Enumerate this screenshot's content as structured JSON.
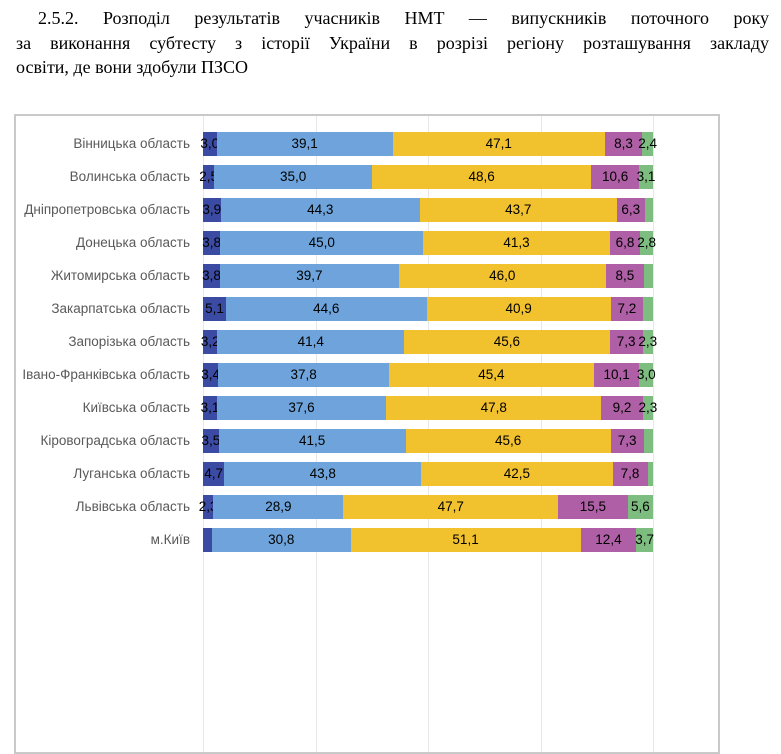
{
  "document": {
    "title_lines": [
      "2.5.2. Розподіл результатів учасників НМТ — випускників поточного року",
      "за виконання субтесту з історії України в розрізі регіону розташування закладу",
      "освіти, де вони здобули ПЗСО"
    ]
  },
  "chart_data": {
    "type": "bar",
    "orientation": "horizontal",
    "stacked": true,
    "units": "percent",
    "xlim": [
      0,
      100
    ],
    "grid": true,
    "gridlines_at": [
      0,
      25,
      50,
      75,
      100
    ],
    "value_format": "comma-decimal, labels inside segments; empty label = segment too small to be labeled in source",
    "segment_colors": [
      "#3b4aa2",
      "#6ea4db",
      "#f2c12e",
      "#af5fa5",
      "#7ebd80"
    ],
    "categories": [
      "Вінницька область",
      "Волинська область",
      "Дніпропетровська область",
      "Донецька область",
      "Житомирська область",
      "Закарпатська область",
      "Запорізька область",
      "Івано-Франківська область",
      "Київська область",
      "Кіровоградська область",
      "Луганська область",
      "Львівська область",
      "м.Київ"
    ],
    "rows": [
      {
        "category": "Вінницька область",
        "segments": [
          {
            "value": 3.0,
            "label": "3,0"
          },
          {
            "value": 39.1,
            "label": "39,1"
          },
          {
            "value": 47.1,
            "label": "47,1"
          },
          {
            "value": 8.3,
            "label": "8,3"
          },
          {
            "value": 2.4,
            "label": "2,4"
          }
        ]
      },
      {
        "category": "Волинська область",
        "segments": [
          {
            "value": 2.5,
            "label": "2,5"
          },
          {
            "value": 35.0,
            "label": "35,0"
          },
          {
            "value": 48.6,
            "label": "48,6"
          },
          {
            "value": 10.6,
            "label": "10,6"
          },
          {
            "value": 3.1,
            "label": "3,1"
          }
        ]
      },
      {
        "category": "Дніпропетровська область",
        "segments": [
          {
            "value": 3.9,
            "label": "3,9"
          },
          {
            "value": 44.3,
            "label": "44,3"
          },
          {
            "value": 43.7,
            "label": "43,7"
          },
          {
            "value": 6.3,
            "label": "6,3"
          },
          {
            "value": 1.8,
            "label": ""
          }
        ]
      },
      {
        "category": "Донецька область",
        "segments": [
          {
            "value": 3.8,
            "label": "3,8"
          },
          {
            "value": 45.0,
            "label": "45,0"
          },
          {
            "value": 41.3,
            "label": "41,3"
          },
          {
            "value": 6.8,
            "label": "6,8"
          },
          {
            "value": 2.8,
            "label": "2,8"
          }
        ]
      },
      {
        "category": "Житомирська область",
        "segments": [
          {
            "value": 3.8,
            "label": "3,8"
          },
          {
            "value": 39.7,
            "label": "39,7"
          },
          {
            "value": 46.0,
            "label": "46,0"
          },
          {
            "value": 8.5,
            "label": "8,5"
          },
          {
            "value": 2.0,
            "label": ""
          }
        ]
      },
      {
        "category": "Закарпатська область",
        "segments": [
          {
            "value": 5.1,
            "label": "5,1"
          },
          {
            "value": 44.6,
            "label": "44,6"
          },
          {
            "value": 40.9,
            "label": "40,9"
          },
          {
            "value": 7.2,
            "label": "7,2"
          },
          {
            "value": 2.2,
            "label": ""
          }
        ]
      },
      {
        "category": "Запорізька область",
        "segments": [
          {
            "value": 3.2,
            "label": "3,2"
          },
          {
            "value": 41.4,
            "label": "41,4"
          },
          {
            "value": 45.6,
            "label": "45,6"
          },
          {
            "value": 7.3,
            "label": "7,3"
          },
          {
            "value": 2.3,
            "label": "2,3"
          }
        ]
      },
      {
        "category": "Івано-Франківська область",
        "segments": [
          {
            "value": 3.4,
            "label": "3,4"
          },
          {
            "value": 37.8,
            "label": "37,8"
          },
          {
            "value": 45.4,
            "label": "45,4"
          },
          {
            "value": 10.1,
            "label": "10,1"
          },
          {
            "value": 3.0,
            "label": "3,0"
          }
        ]
      },
      {
        "category": "Київська область",
        "segments": [
          {
            "value": 3.1,
            "label": "3,1"
          },
          {
            "value": 37.6,
            "label": "37,6"
          },
          {
            "value": 47.8,
            "label": "47,8"
          },
          {
            "value": 9.2,
            "label": "9,2"
          },
          {
            "value": 2.3,
            "label": "2,3"
          }
        ]
      },
      {
        "category": "Кіровоградська область",
        "segments": [
          {
            "value": 3.5,
            "label": "3,5"
          },
          {
            "value": 41.5,
            "label": "41,5"
          },
          {
            "value": 45.6,
            "label": "45,6"
          },
          {
            "value": 7.3,
            "label": "7,3"
          },
          {
            "value": 2.1,
            "label": ""
          }
        ]
      },
      {
        "category": "Луганська область",
        "segments": [
          {
            "value": 4.7,
            "label": "4,7"
          },
          {
            "value": 43.8,
            "label": "43,8"
          },
          {
            "value": 42.5,
            "label": "42,5"
          },
          {
            "value": 7.8,
            "label": "7,8"
          },
          {
            "value": 1.2,
            "label": ""
          }
        ]
      },
      {
        "category": "Львівська область",
        "segments": [
          {
            "value": 2.3,
            "label": "2,3"
          },
          {
            "value": 28.9,
            "label": "28,9"
          },
          {
            "value": 47.7,
            "label": "47,7"
          },
          {
            "value": 15.5,
            "label": "15,5"
          },
          {
            "value": 5.6,
            "label": "5,6"
          }
        ]
      },
      {
        "category": "м.Київ",
        "segments": [
          {
            "value": 2.0,
            "label": ""
          },
          {
            "value": 30.8,
            "label": "30,8"
          },
          {
            "value": 51.1,
            "label": "51,1"
          },
          {
            "value": 12.4,
            "label": "12,4"
          },
          {
            "value": 3.7,
            "label": "3,7"
          }
        ]
      }
    ]
  }
}
